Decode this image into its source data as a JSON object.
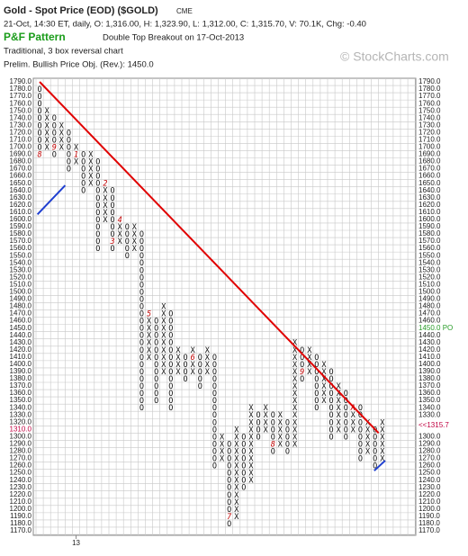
{
  "chart_data": {
    "type": "point-and-figure",
    "title": "Gold - Spot Price (EOD) ($GOLD)",
    "exchange": "CME",
    "summary": "21-Oct, 14:30 ET, daily, O: 1,316.00, H: 1,323.90, L: 1,312.00, C: 1,315.70, V: 70.1K, Chg: -0.40",
    "pattern_label": "P&F Pattern",
    "pattern": "Double Top Breakout on 17-Oct-2013",
    "method": "Traditional, 3 box reversal chart",
    "objective_text": "Prelim. Bullish Price Obj. (Rev.): 1450.0",
    "watermark": "© StockCharts.com",
    "box_size": 10,
    "ylim": [
      1790,
      1170
    ],
    "grid": true,
    "yticks": [
      {
        "value": 1790,
        "label": "1790.0"
      },
      {
        "value": 1780,
        "label": "1780.0"
      },
      {
        "value": 1770,
        "label": "1770.0"
      },
      {
        "value": 1760,
        "label": "1760.0"
      },
      {
        "value": 1750,
        "label": "1750.0"
      },
      {
        "value": 1740,
        "label": "1740.0"
      },
      {
        "value": 1730,
        "label": "1730.0"
      },
      {
        "value": 1720,
        "label": "1720.0"
      },
      {
        "value": 1710,
        "label": "1710.0"
      },
      {
        "value": 1700,
        "label": "1700.0"
      },
      {
        "value": 1690,
        "label": "1690.0"
      },
      {
        "value": 1680,
        "label": "1680.0"
      },
      {
        "value": 1670,
        "label": "1670.0"
      },
      {
        "value": 1660,
        "label": "1660.0"
      },
      {
        "value": 1650,
        "label": "1650.0"
      },
      {
        "value": 1640,
        "label": "1640.0"
      },
      {
        "value": 1630,
        "label": "1630.0"
      },
      {
        "value": 1620,
        "label": "1620.0"
      },
      {
        "value": 1610,
        "label": "1610.0"
      },
      {
        "value": 1600,
        "label": "1600.0"
      },
      {
        "value": 1590,
        "label": "1590.0"
      },
      {
        "value": 1580,
        "label": "1580.0"
      },
      {
        "value": 1570,
        "label": "1570.0"
      },
      {
        "value": 1560,
        "label": "1560.0"
      },
      {
        "value": 1550,
        "label": "1550.0"
      },
      {
        "value": 1540,
        "label": "1540.0"
      },
      {
        "value": 1530,
        "label": "1530.0"
      },
      {
        "value": 1520,
        "label": "1520.0"
      },
      {
        "value": 1510,
        "label": "1510.0"
      },
      {
        "value": 1500,
        "label": "1500.0"
      },
      {
        "value": 1490,
        "label": "1490.0"
      },
      {
        "value": 1480,
        "label": "1480.0"
      },
      {
        "value": 1470,
        "label": "1470.0"
      },
      {
        "value": 1460,
        "label": "1460.0"
      },
      {
        "value": 1450,
        "label": "1450.0"
      },
      {
        "value": 1440,
        "label": "1440.0"
      },
      {
        "value": 1430,
        "label": "1430.0"
      },
      {
        "value": 1420,
        "label": "1420.0"
      },
      {
        "value": 1410,
        "label": "1410.0"
      },
      {
        "value": 1400,
        "label": "1400.0"
      },
      {
        "value": 1390,
        "label": "1390.0"
      },
      {
        "value": 1380,
        "label": "1380.0"
      },
      {
        "value": 1370,
        "label": "1370.0"
      },
      {
        "value": 1360,
        "label": "1360.0"
      },
      {
        "value": 1350,
        "label": "1350.0"
      },
      {
        "value": 1340,
        "label": "1340.0"
      },
      {
        "value": 1330,
        "label": "1330.0"
      },
      {
        "value": 1320,
        "label": "1320.0"
      },
      {
        "value": 1310,
        "label": "1310.0"
      },
      {
        "value": 1300,
        "label": "1300.0"
      },
      {
        "value": 1290,
        "label": "1290.0"
      },
      {
        "value": 1280,
        "label": "1280.0"
      },
      {
        "value": 1270,
        "label": "1270.0"
      },
      {
        "value": 1260,
        "label": "1260.0"
      },
      {
        "value": 1250,
        "label": "1250.0"
      },
      {
        "value": 1240,
        "label": "1240.0"
      },
      {
        "value": 1230,
        "label": "1230.0"
      },
      {
        "value": 1220,
        "label": "1220.0"
      },
      {
        "value": 1210,
        "label": "1210.0"
      },
      {
        "value": 1200,
        "label": "1200.0"
      },
      {
        "value": 1190,
        "label": "1190.0"
      },
      {
        "value": 1180,
        "label": "1180.0"
      },
      {
        "value": 1170,
        "label": "1170.0"
      }
    ],
    "price_objective": {
      "value": 1450,
      "label": "1450.0 PO",
      "color": "#2a9d2a"
    },
    "last_price": {
      "value": 1315.7,
      "label": "<<1315.7",
      "color": "#c00040"
    },
    "columns": [
      {
        "kind": "O",
        "low": 1690,
        "high": 1780
      },
      {
        "kind": "X",
        "low": 1700,
        "high": 1750
      },
      {
        "kind": "O",
        "low": 1690,
        "high": 1740
      },
      {
        "kind": "X",
        "low": 1700,
        "high": 1730
      },
      {
        "kind": "O",
        "low": 1670,
        "high": 1720
      },
      {
        "kind": "X",
        "low": 1680,
        "high": 1700
      },
      {
        "kind": "O",
        "low": 1640,
        "high": 1690
      },
      {
        "kind": "X",
        "low": 1650,
        "high": 1690
      },
      {
        "kind": "O",
        "low": 1560,
        "high": 1680
      },
      {
        "kind": "X",
        "low": 1600,
        "high": 1650
      },
      {
        "kind": "O",
        "low": 1560,
        "high": 1640
      },
      {
        "kind": "X",
        "low": 1570,
        "high": 1600
      },
      {
        "kind": "O",
        "low": 1550,
        "high": 1590
      },
      {
        "kind": "X",
        "low": 1560,
        "high": 1590
      },
      {
        "kind": "O",
        "low": 1340,
        "high": 1580
      },
      {
        "kind": "X",
        "low": 1410,
        "high": 1470
      },
      {
        "kind": "O",
        "low": 1350,
        "high": 1460
      },
      {
        "kind": "X",
        "low": 1390,
        "high": 1480
      },
      {
        "kind": "O",
        "low": 1340,
        "high": 1470
      },
      {
        "kind": "X",
        "low": 1390,
        "high": 1420
      },
      {
        "kind": "O",
        "low": 1380,
        "high": 1410
      },
      {
        "kind": "X",
        "low": 1390,
        "high": 1420
      },
      {
        "kind": "O",
        "low": 1370,
        "high": 1410
      },
      {
        "kind": "X",
        "low": 1390,
        "high": 1420
      },
      {
        "kind": "O",
        "low": 1260,
        "high": 1410
      },
      {
        "kind": "X",
        "low": 1270,
        "high": 1300
      },
      {
        "kind": "O",
        "low": 1180,
        "high": 1290
      },
      {
        "kind": "X",
        "low": 1190,
        "high": 1310
      },
      {
        "kind": "O",
        "low": 1230,
        "high": 1300
      },
      {
        "kind": "X",
        "low": 1240,
        "high": 1340
      },
      {
        "kind": "O",
        "low": 1300,
        "high": 1330
      },
      {
        "kind": "X",
        "low": 1310,
        "high": 1340
      },
      {
        "kind": "O",
        "low": 1280,
        "high": 1330
      },
      {
        "kind": "X",
        "low": 1290,
        "high": 1330
      },
      {
        "kind": "O",
        "low": 1280,
        "high": 1320
      },
      {
        "kind": "X",
        "low": 1290,
        "high": 1430
      },
      {
        "kind": "O",
        "low": 1380,
        "high": 1420
      },
      {
        "kind": "X",
        "low": 1390,
        "high": 1420
      },
      {
        "kind": "O",
        "low": 1340,
        "high": 1410
      },
      {
        "kind": "X",
        "low": 1350,
        "high": 1400
      },
      {
        "kind": "O",
        "low": 1300,
        "high": 1390
      },
      {
        "kind": "X",
        "low": 1310,
        "high": 1370
      },
      {
        "kind": "O",
        "low": 1300,
        "high": 1360
      },
      {
        "kind": "X",
        "low": 1310,
        "high": 1340
      },
      {
        "kind": "O",
        "low": 1270,
        "high": 1340
      },
      {
        "kind": "X",
        "low": 1280,
        "high": 1320
      },
      {
        "kind": "O",
        "low": 1260,
        "high": 1310
      },
      {
        "kind": "X",
        "low": 1270,
        "high": 1320
      }
    ],
    "month_marks": [
      {
        "column": 0,
        "value": 1690,
        "label": "8"
      },
      {
        "column": 2,
        "value": 1700,
        "label": "9"
      },
      {
        "column": 5,
        "value": 1690,
        "label": "1"
      },
      {
        "column": 9,
        "value": 1650,
        "label": "2"
      },
      {
        "column": 10,
        "value": 1570,
        "label": "3"
      },
      {
        "column": 11,
        "value": 1600,
        "label": "4"
      },
      {
        "column": 15,
        "value": 1470,
        "label": "5"
      },
      {
        "column": 21,
        "value": 1410,
        "label": "6"
      },
      {
        "column": 26,
        "value": 1190,
        "label": "7"
      },
      {
        "column": 32,
        "value": 1290,
        "label": "8"
      },
      {
        "column": 36,
        "value": 1390,
        "label": "9"
      },
      {
        "column": 43,
        "value": 1340,
        "label": "A"
      }
    ],
    "trendlines": [
      {
        "color": "#e00000",
        "x": [
          0,
          46.5
        ],
        "y": [
          1790,
          1305
        ]
      },
      {
        "color": "#1f3fd0",
        "x": [
          -0.3,
          3.5
        ],
        "y": [
          1607,
          1647
        ]
      },
      {
        "color": "#1f3fd0",
        "x": [
          45.9,
          47.4
        ],
        "y": [
          1253,
          1267
        ]
      }
    ],
    "x_labels": [
      {
        "column": 5,
        "label": "13"
      }
    ]
  }
}
